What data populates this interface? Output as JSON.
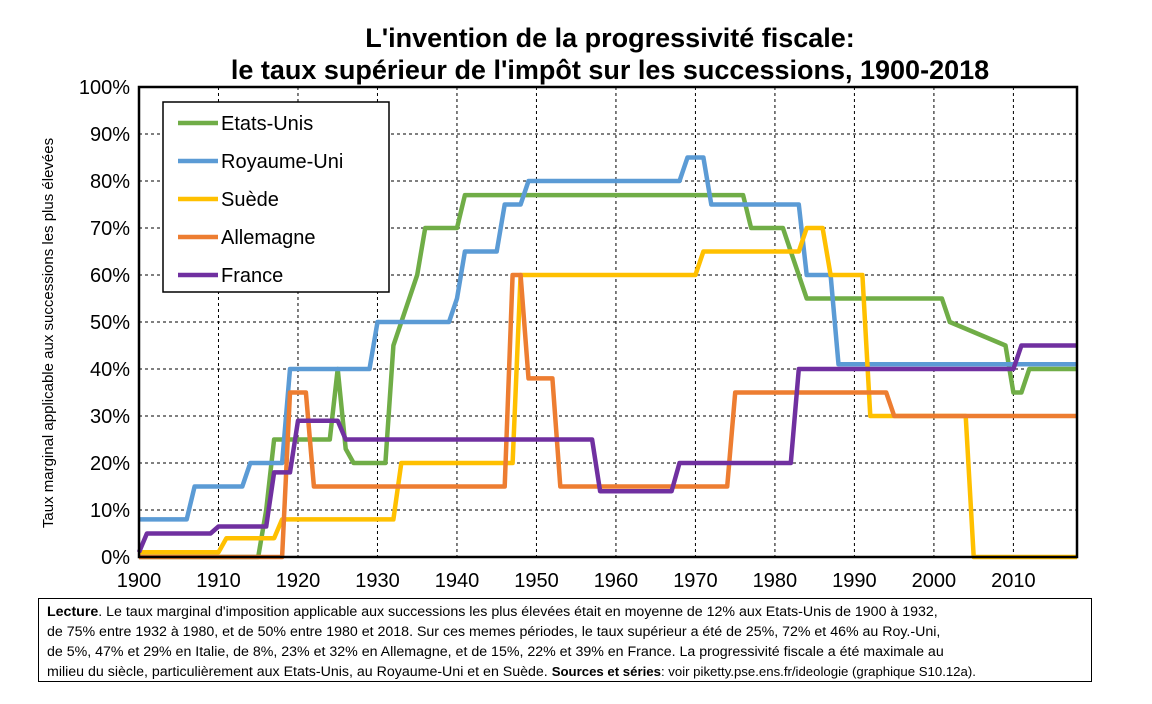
{
  "chart_data": {
    "type": "line",
    "title": "L'invention de la progressivité fiscale:",
    "subtitle": "le taux supérieur de l'impôt sur les successions, 1900-2018",
    "ylabel": "Taux marginal applicable aux successions les plus élevées",
    "xlabel": "",
    "xlim": [
      1900,
      2018
    ],
    "ylim": [
      0,
      100
    ],
    "x_ticks": [
      "1900",
      "1910",
      "1920",
      "1930",
      "1940",
      "1950",
      "1960",
      "1970",
      "1980",
      "1990",
      "2000",
      "2010"
    ],
    "y_ticks": [
      "0%",
      "10%",
      "20%",
      "30%",
      "40%",
      "50%",
      "60%",
      "70%",
      "80%",
      "90%",
      "100%"
    ],
    "grid": true,
    "legend_position": "top-left",
    "series": [
      {
        "name": "Etats-Unis",
        "color": "#70ad47",
        "points": [
          [
            1900,
            0
          ],
          [
            1915,
            0
          ],
          [
            1916,
            10
          ],
          [
            1917,
            25
          ],
          [
            1918,
            25
          ],
          [
            1919,
            25
          ],
          [
            1924,
            25
          ],
          [
            1925,
            40
          ],
          [
            1926,
            23
          ],
          [
            1927,
            20
          ],
          [
            1931,
            20
          ],
          [
            1932,
            45
          ],
          [
            1935,
            60
          ],
          [
            1936,
            70
          ],
          [
            1940,
            70
          ],
          [
            1941,
            77
          ],
          [
            1976,
            77
          ],
          [
            1977,
            70
          ],
          [
            1981,
            70
          ],
          [
            1982,
            65
          ],
          [
            1984,
            55
          ],
          [
            2001,
            55
          ],
          [
            2002,
            50
          ],
          [
            2009,
            45
          ],
          [
            2010,
            35
          ],
          [
            2011,
            35
          ],
          [
            2012,
            40
          ],
          [
            2018,
            40
          ]
        ]
      },
      {
        "name": "Royaume-Uni",
        "color": "#5b9bd5",
        "points": [
          [
            1900,
            8
          ],
          [
            1906,
            8
          ],
          [
            1907,
            15
          ],
          [
            1913,
            15
          ],
          [
            1914,
            20
          ],
          [
            1918,
            20
          ],
          [
            1919,
            40
          ],
          [
            1929,
            40
          ],
          [
            1930,
            50
          ],
          [
            1939,
            50
          ],
          [
            1940,
            55
          ],
          [
            1941,
            65
          ],
          [
            1945,
            65
          ],
          [
            1946,
            75
          ],
          [
            1948,
            75
          ],
          [
            1949,
            80
          ],
          [
            1968,
            80
          ],
          [
            1969,
            85
          ],
          [
            1971,
            85
          ],
          [
            1972,
            75
          ],
          [
            1983,
            75
          ],
          [
            1984,
            60
          ],
          [
            1987,
            60
          ],
          [
            1988,
            41
          ],
          [
            2018,
            41
          ]
        ]
      },
      {
        "name": "Suède",
        "color": "#ffc000",
        "points": [
          [
            1900,
            1
          ],
          [
            1910,
            1
          ],
          [
            1911,
            4
          ],
          [
            1917,
            4
          ],
          [
            1918,
            8
          ],
          [
            1932,
            8
          ],
          [
            1933,
            20
          ],
          [
            1946,
            20
          ],
          [
            1947,
            20
          ],
          [
            1948,
            60
          ],
          [
            1970,
            60
          ],
          [
            1971,
            65
          ],
          [
            1983,
            65
          ],
          [
            1984,
            70
          ],
          [
            1986,
            70
          ],
          [
            1987,
            60
          ],
          [
            1991,
            60
          ],
          [
            1992,
            30
          ],
          [
            2004,
            30
          ],
          [
            2005,
            0
          ],
          [
            2018,
            0
          ]
        ]
      },
      {
        "name": "Allemagne",
        "color": "#ed7d31",
        "points": [
          [
            1900,
            0
          ],
          [
            1905,
            0
          ],
          [
            1906,
            0
          ],
          [
            1918,
            0
          ],
          [
            1919,
            35
          ],
          [
            1921,
            35
          ],
          [
            1922,
            15
          ],
          [
            1946,
            15
          ],
          [
            1947,
            60
          ],
          [
            1948,
            60
          ],
          [
            1949,
            38
          ],
          [
            1952,
            38
          ],
          [
            1953,
            15
          ],
          [
            1974,
            15
          ],
          [
            1975,
            35
          ],
          [
            1994,
            35
          ],
          [
            1995,
            30
          ],
          [
            2018,
            30
          ]
        ]
      },
      {
        "name": "France",
        "color": "#7030a0",
        "points": [
          [
            1900,
            1
          ],
          [
            1901,
            5
          ],
          [
            1909,
            5
          ],
          [
            1910,
            6.5
          ],
          [
            1916,
            6.5
          ],
          [
            1917,
            18
          ],
          [
            1919,
            18
          ],
          [
            1920,
            29
          ],
          [
            1925,
            29
          ],
          [
            1926,
            25
          ],
          [
            1957,
            25
          ],
          [
            1958,
            14
          ],
          [
            1967,
            14
          ],
          [
            1968,
            20
          ],
          [
            1982,
            20
          ],
          [
            1983,
            40
          ],
          [
            2010,
            40
          ],
          [
            2011,
            45
          ],
          [
            2018,
            45
          ]
        ]
      }
    ]
  },
  "lecture": {
    "label": "Lecture",
    "line1": ". Le taux marginal d'imposition applicable aux successions les plus élevées était en moyenne de 12% aux Etats-Unis de 1900 à 1932,",
    "line2": "de 75% entre 1932 à 1980, et de 50% entre 1980 et 2018. Sur ces memes périodes, le taux supérieur a été de 25%, 72% et 46% au Roy.-Uni,",
    "line3": "de 5%, 47% et 29% en Italie, de 8%, 23% et 32% en Allemagne, et de 15%, 22% et 39% en France. La progressivité fiscale a été maximale au",
    "line4": "milieu du siècle, particulièrement aux Etats-Unis, au Royaume-Uni et en Suède. ",
    "sources_label": "Sources et séries",
    "sources_text": ": voir piketty.pse.ens.fr/ideologie (graphique S10.12a)."
  }
}
